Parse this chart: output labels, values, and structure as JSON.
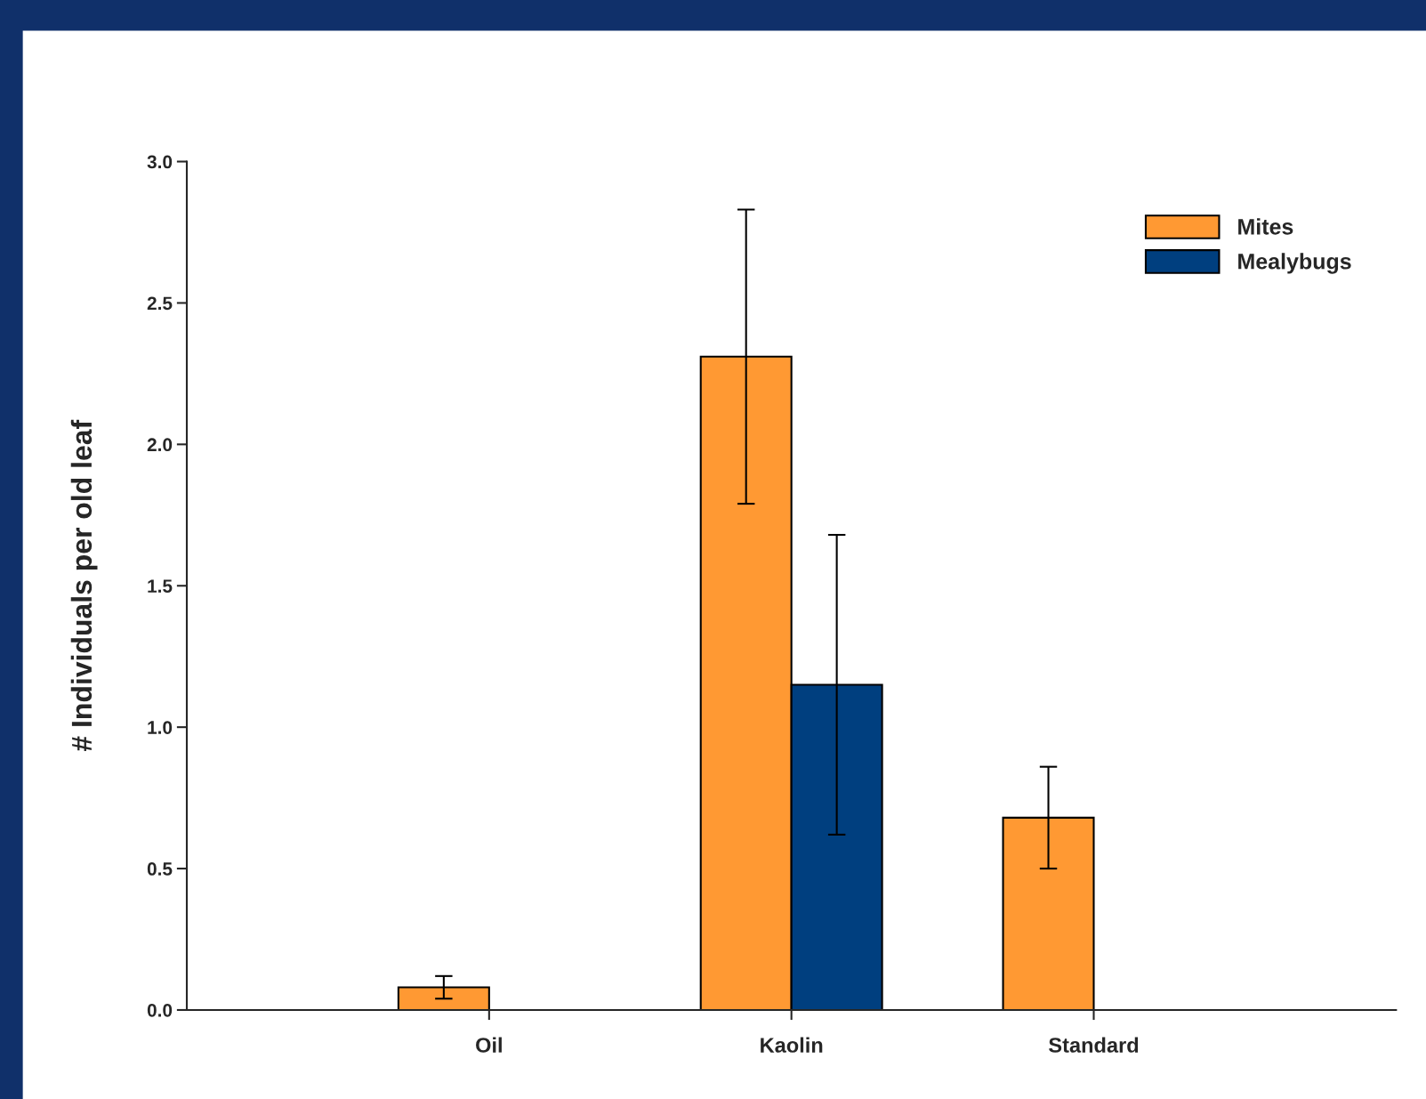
{
  "chart_data": {
    "type": "bar",
    "ylabel": "# Individuals per old leaf",
    "categories": [
      "Oil",
      "Kaolin",
      "Standard"
    ],
    "series": [
      {
        "name": "Mites",
        "color": "#ff9933",
        "values": [
          0.08,
          2.31,
          0.68
        ],
        "errors": [
          0.04,
          [
            1.79,
            2.83
          ],
          [
            0.5,
            0.86
          ]
        ]
      },
      {
        "name": "Mealybugs",
        "color": "#003f7f",
        "values": [
          null,
          1.15,
          null
        ],
        "errors": [
          null,
          [
            0.62,
            1.68
          ],
          null
        ]
      }
    ],
    "ylim": [
      0,
      3.0
    ],
    "yticks": [
      {
        "value": 0,
        "label": "0.0"
      },
      0.5,
      {
        "value": 1,
        "label": "1.0"
      },
      1.5,
      {
        "value": 2,
        "label": "2.0"
      },
      2.5,
      {
        "value": 3,
        "label": "3.0"
      }
    ],
    "grid": false,
    "legend": "top right"
  }
}
